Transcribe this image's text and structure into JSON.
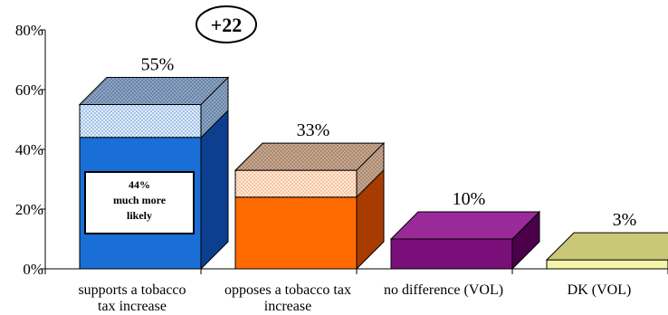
{
  "chart_data": {
    "type": "bar",
    "categories": [
      [
        "supports a tobacco",
        "tax increase"
      ],
      [
        "opposes a tobacco tax",
        "increase"
      ],
      [
        "no difference (VOL)"
      ],
      [
        "DK (VOL)"
      ]
    ],
    "values": [
      55,
      33,
      10,
      3
    ],
    "value_labels": [
      "55%",
      "33%",
      "10%",
      "3%"
    ],
    "stacked_lower_values": [
      44,
      24,
      null,
      null
    ],
    "ylim": [
      0,
      80
    ],
    "y_ticks": [
      0,
      20,
      40,
      60,
      80
    ],
    "y_tick_labels": [
      "0%",
      "20%",
      "40%",
      "60%",
      "80%"
    ],
    "inner_label_lines": [
      "44%",
      "much more",
      "likely"
    ],
    "badge": "+22",
    "style": "3d",
    "colors": {
      "supports_front": "#1a6fd6",
      "supports_side": "#0d3f8f",
      "supports_top": "#9fbbd8",
      "supports_upper_front": "#dbe9f6",
      "supports_upper_side": "#6e86a8",
      "opposes_front": "#ff6a00",
      "opposes_side": "#a83c00",
      "opposes_top": "#cfa487",
      "opposes_upper_front": "#fbe1cd",
      "opposes_upper_side": "#a8866c",
      "nodiff_front": "#7a0f7a",
      "nodiff_side": "#4a004a",
      "nodiff_top": "#9a2a9a",
      "dk_front": "#f4f4a8",
      "dk_side": "#b0b070",
      "dk_top": "#c8c878"
    }
  }
}
